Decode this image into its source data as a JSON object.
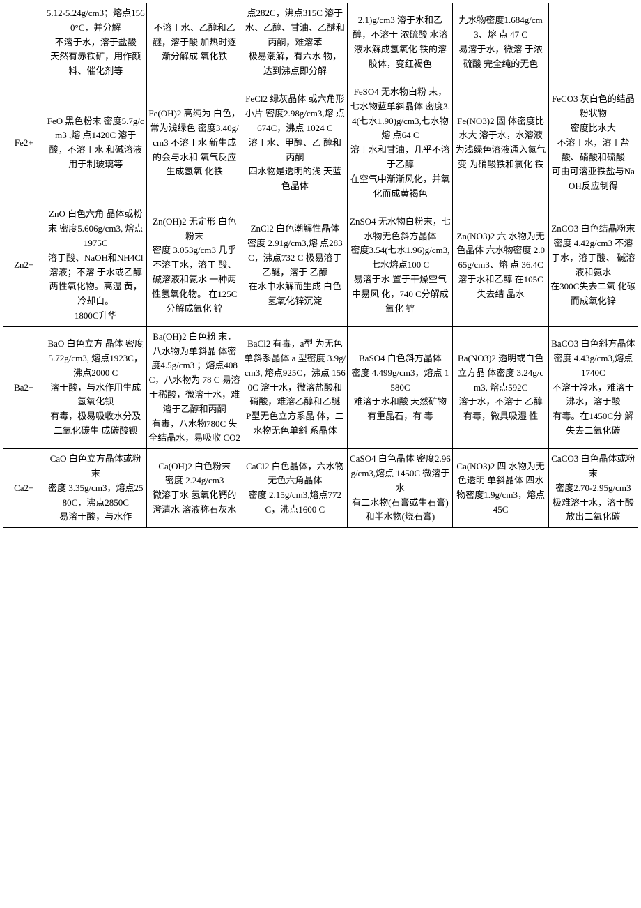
{
  "table": {
    "rows": [
      {
        "ion": "",
        "oxide": "5.12-5.24g/cm3；熔点1560°C，并分解\n不溶于水，溶于盐酸\n天然有赤铁矿，用作颜料、催化剂等",
        "hydroxide": "不溶于水、乙醇和乙醚，溶于酸 加热时逐渐分解成 氧化铁",
        "chloride": "点282C，沸点315C 溶于水、乙醇、甘油、乙醚和丙酮，难溶苯\n极易潮解，有六水 物，达到沸点即分解",
        "sulfate": "2.1)g/cm3 溶于水和乙醇，不溶于 浓硫酸 水溶液水解成氢氧化 铁的溶胶体，变红褐色",
        "nitrate": "九水物密度1.684g/cm3、熔 点 47 C\n易溶于水，微溶 于浓硫酸 完全纯的无色",
        "carbonate": ""
      },
      {
        "ion": "Fe2+",
        "oxide": "FeO 黑色粉末 密度5.7g/cm3 ,熔 点1420C 溶于酸，不溶于水 和碱溶液 用于制玻璃等",
        "hydroxide": "Fe(OH)2 高纯为 白色，常为浅绿色 密度3.40g/cm3 不溶于水 新生成的会与水和 氧气反应生成氢氧 化铁",
        "chloride": "FeCl2 绿灰晶体 或六角形小片 密度2.98g/cm3,熔 点674C，沸点 1024 C\n溶于水、甲醇、乙 醇和丙酮\n四水物是透明的浅 天蓝色晶体",
        "sulfate": "FeSO4 无水物白粉 末，七水物蓝单斜晶体 密度3.4(七水1.90)g/cm3,七水物熔 点64 C\n溶于水和甘油，几乎不溶于乙醇\n在空气中渐渐风化，并氧化而成黄褐色",
        "nitrate": "Fe(NO3)2 固 体密度比水大 溶于水，水溶液 为浅绿色溶液通入氮气变 为硝酸铁和氯化 铁",
        "carbonate": "FeCO3   灰白色的结晶粉状物\n密度比水大\n不溶于水，溶于盐酸、硝酸和硫酸\n可由可溶亚铁盐与NaOH反应制得"
      },
      {
        "ion": "Zn2+",
        "oxide": "ZnO 白色六角 晶体或粉末 密度5.606g/cm3,  熔点1975C\n溶于酸、NaOH和NH4Cl溶液；不溶 于水或乙醇 两性氧化物。高温 黄，冷却白。\n1800C升华",
        "hydroxide": "Zn(OH)2 无定形 白色粉末\n密度 3.053g/cm3 几乎不溶于水，溶于 酸、碱溶液和氨水 一种两性氢氧化物。 在125C分解成氧化 锌",
        "chloride": "ZnCl2   白色潮解性晶体\n密度 2.91g/cm3,熔 点283 C，沸点732 C 极易溶于乙醚，溶于 乙醇\n在水中水解而生成 白色氢氧化锌沉淀",
        "sulfate": "ZnSO4   无水物白粉末，七水物无色斜方晶体\n密度3.54(七水1.96)g/cm3,七水熔点100 C\n易溶于水 置于干燥空气中易风 化，740 C分解成氧化 锌",
        "nitrate": "Zn(NO3)2 六 水物为无色晶体 六水物密度 2.065g/cm3、熔 点 36.4C 溶于水和乙醇 在105C失去结 晶水",
        "carbonate": "ZnCO3   白色结晶粉末\n密度 4.42g/cm3 不溶于水，溶于酸、 碱溶液和氨水\n在300C失去二氧 化碳而成氧化锌"
      },
      {
        "ion": "Ba2+",
        "oxide": "BaO 白色立方 晶体 密度 5.72g/cm3, 熔点1923C，沸点2000 C\n溶于酸，与水作用生成氢氧化钡\n有毒，极易吸收水分及二氧化碳生 成碳酸钡",
        "hydroxide": "Ba(OH)2 白色粉 末，八水物为单斜晶 体密度4.5g/cm3 ；熔点408C，八水物为 78 C 易溶于稀酸，微溶于水，难溶于乙醇和丙酮\n有毒，八水物780C 失全结晶水，易吸收 CO2",
        "chloride": "BaCl2 有毒，a型 为无色单斜系晶体 a 型密度 3.9g/cm3,   熔点925C，沸点 1560C 溶于水，微溶盐酸和硝酸，难溶乙醇和乙醚\nP型无色立方系晶 体，二水物无色单斜 系晶体",
        "sulfate": "BaSO4   白色斜方晶体\n密度 4.499g/cm3，熔点 1580C\n难溶于水和酸 天然矿物有重晶石，有 毒",
        "nitrate": "Ba(NO3)2 透明或白色立方晶 体密度 3.24g/cm3, 熔点592C\n溶于水，不溶于 乙醇\n有毒，微具吸湿 性",
        "carbonate": "BaCO3 白色斜方晶体\n密度 4.43g/cm3,熔点 1740C\n不溶于冷水，难溶于沸水，溶于酸\n有毒。在1450C分 解失去二氧化碳"
      },
      {
        "ion": "Ca2+",
        "oxide": "CaO 白色立方晶体或粉末\n密度 3.35g/cm3，熔点2580C，沸点2850C\n易溶于酸，与水作",
        "hydroxide": "Ca(OH)2 白色粉末\n密度 2.24g/cm3\n微溶于水 氢氧化钙的澄清水 溶液称石灰水",
        "chloride": "CaCl2 白色晶体，六水物无色六角晶体\n密度 2.15g/cm3,熔点772C，沸点1600 C",
        "sulfate": "CaSO4 白色晶体 密度2.96g/cm3,熔点 1450C 微溶于水\n有二水物(石膏或生石膏)和半水物(烧石膏)",
        "nitrate": "Ca(NO3)2 四 水物为无色透明 单斜晶体 四水物密度1.9g/cm3，熔点 45C",
        "carbonate": "CaCO3   白色晶体或粉末\n密度2.70-2.95g/cm3 极难溶于水，溶于酸 放出二氧化碳"
      }
    ]
  }
}
